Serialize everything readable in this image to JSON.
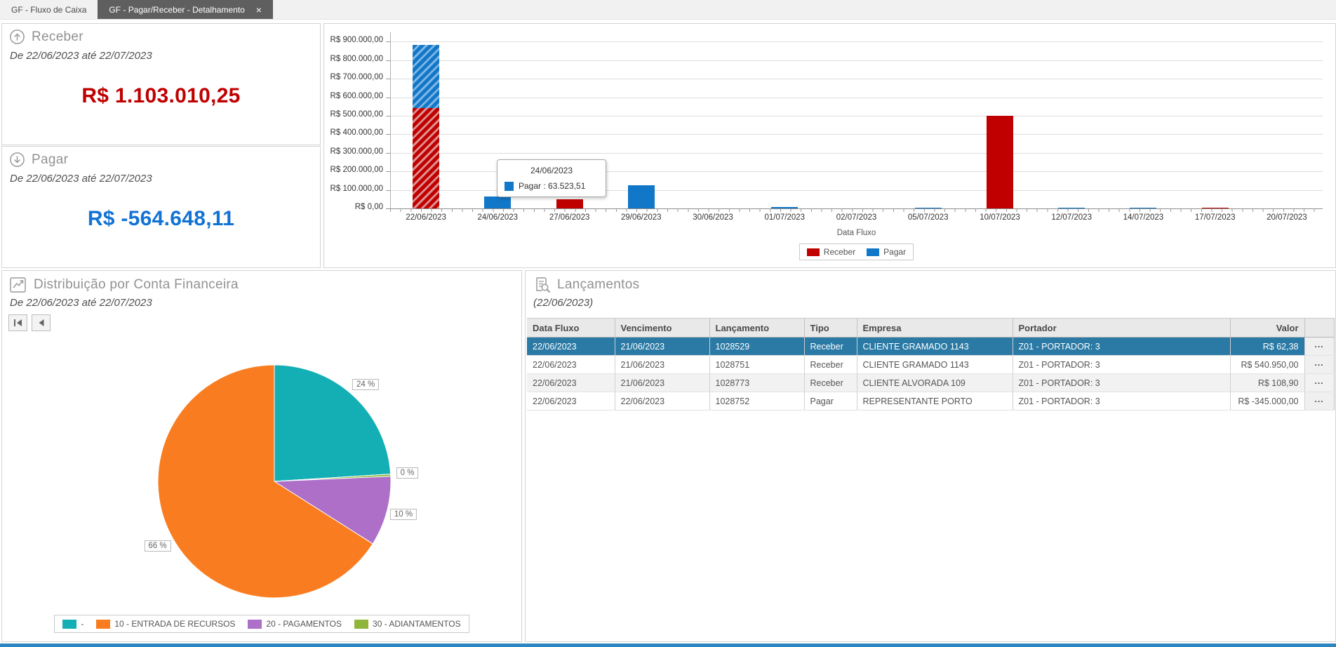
{
  "tabs": [
    {
      "label": "GF - Fluxo de Caixa",
      "active": false
    },
    {
      "label": "GF - Pagar/Receber - Detalhamento",
      "active": true,
      "close_icon": "×"
    }
  ],
  "cards": {
    "receber": {
      "icon": "circle-arrow-up-icon",
      "title": "Receber",
      "subtitle": "De 22/06/2023 até 22/07/2023",
      "value": "R$ 1.103.010,25",
      "value_color": "#C00000"
    },
    "pagar": {
      "icon": "circle-arrow-down-icon",
      "title": "Pagar",
      "subtitle": "De 22/06/2023 até 22/07/2023",
      "value": "R$ -564.648,11",
      "value_color": "#1273D4"
    }
  },
  "chart_data": [
    {
      "type": "bar",
      "stacked": true,
      "grid": true,
      "legend_position": "bottom",
      "title": "",
      "xlabel": "Data Fluxo",
      "ylabel": "",
      "ylim": [
        0,
        950000
      ],
      "ytick_step": 100000,
      "ytick_currency_prefix": "R$",
      "categories": [
        "22/06/2023",
        "24/06/2023",
        "27/06/2023",
        "29/06/2023",
        "30/06/2023",
        "01/07/2023",
        "02/07/2023",
        "05/07/2023",
        "10/07/2023",
        "12/07/2023",
        "14/07/2023",
        "17/07/2023",
        "20/07/2023"
      ],
      "series": [
        {
          "name": "Receber",
          "color": "#C00000",
          "hatch_color": "#DE8F8F",
          "values": [
            541000,
            0,
            50000,
            0,
            0,
            0,
            0,
            0,
            500000,
            0,
            0,
            4000,
            0
          ]
        },
        {
          "name": "Pagar",
          "color": "#1177C8",
          "hatch_color": "#7FB5E3",
          "values": [
            340000,
            63523.51,
            0,
            125000,
            0,
            8000,
            0,
            5000,
            0,
            4000,
            5000,
            0,
            0
          ]
        }
      ],
      "hatched_categories": [
        0
      ],
      "tooltip": {
        "title": "24/06/2023",
        "swatch_color": "#1177C8",
        "text": "Pagar : 63.523,51"
      }
    },
    {
      "type": "pie",
      "icon": "trend-line-icon",
      "title": "Distribuição por Conta Financeira",
      "subtitle": "De 22/06/2023 até 22/07/2023",
      "nav_icons": [
        "skip-first-icon",
        "previous-icon"
      ],
      "slices": [
        {
          "label": "-",
          "color": "#14AFB4",
          "pct": 24
        },
        {
          "label": "10 - ENTRADA DE RECURSOS",
          "color": "#F97D20",
          "pct": 66
        },
        {
          "label": "20 - PAGAMENTOS",
          "color": "#AE6FC9",
          "pct": 10
        },
        {
          "label": "30 - ADIANTAMENTOS",
          "color": "#8FB63B",
          "pct": 0
        }
      ],
      "draw_order": [
        0,
        3,
        2,
        1
      ],
      "pct_label_suffix": " %",
      "legend_position": "bottom"
    }
  ],
  "lancamentos": {
    "icon": "document-search-icon",
    "title": "Lançamentos",
    "subtitle": "(22/06/2023)",
    "columns": [
      "Data Fluxo",
      "Vencimento",
      "Lançamento",
      "Tipo",
      "Empresa",
      "Portador",
      "Valor"
    ],
    "col_align": [
      "left",
      "left",
      "left",
      "left",
      "left",
      "left",
      "right"
    ],
    "rows": [
      [
        "22/06/2023",
        "21/06/2023",
        "1028529",
        "Receber",
        "CLIENTE GRAMADO 1143",
        "Z01 - PORTADOR: 3",
        "R$ 62,38"
      ],
      [
        "22/06/2023",
        "21/06/2023",
        "1028751",
        "Receber",
        "CLIENTE GRAMADO 1143",
        "Z01 - PORTADOR: 3",
        "R$ 540.950,00"
      ],
      [
        "22/06/2023",
        "21/06/2023",
        "1028773",
        "Receber",
        "CLIENTE ALVORADA 109",
        "Z01 - PORTADOR: 3",
        "R$ 108,90"
      ],
      [
        "22/06/2023",
        "22/06/2023",
        "1028752",
        "Pagar",
        "REPRESENTANTE PORTO",
        "Z01 - PORTADOR: 3",
        "R$ -345.000,00"
      ]
    ],
    "selected_row_index": 0,
    "selected_row_color": "#2A7AA5",
    "row_action_label": "..."
  },
  "window": {
    "bottom_accent_color": "#2E86C0"
  }
}
